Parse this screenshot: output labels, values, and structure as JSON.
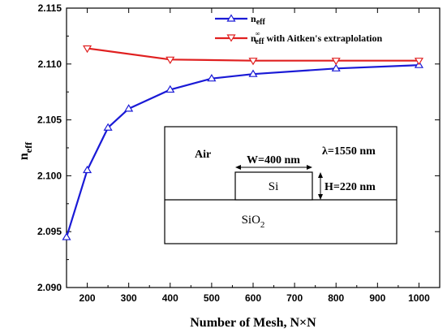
{
  "chart_data": {
    "type": "line",
    "xlabel": "Number of Mesh,  N×N",
    "ylabel_main": "n",
    "ylabel_sub": "eff",
    "xlim": [
      150,
      1050
    ],
    "ylim": [
      2.09,
      2.115
    ],
    "xticks": [
      200,
      300,
      400,
      500,
      600,
      700,
      800,
      900,
      1000
    ],
    "yticks": [
      2.09,
      2.095,
      2.1,
      2.105,
      2.11,
      2.115
    ],
    "ytick_labels": [
      "2.090",
      "2.095",
      "2.100",
      "2.105",
      "2.110",
      "2.115"
    ],
    "series": [
      {
        "name_main": "n",
        "name_sub": "eff",
        "name_rest": "",
        "color": "#1a1ad6",
        "marker": "triangle-up",
        "x": [
          150,
          200,
          250,
          300,
          400,
          500,
          600,
          800,
          1000
        ],
        "y": [
          2.0945,
          2.1005,
          2.1043,
          2.106,
          2.1077,
          2.1087,
          2.1091,
          2.1096,
          2.1099
        ]
      },
      {
        "name_main": "n",
        "name_sub": "eff",
        "name_sup": "∞",
        "name_rest": " with Aitken's extraplolation",
        "color": "#e02020",
        "marker": "triangle-down",
        "x": [
          200,
          400,
          600,
          800,
          1000
        ],
        "y": [
          2.1114,
          2.1104,
          2.1103,
          2.1103,
          2.1103
        ]
      }
    ],
    "inset": {
      "air_label": "Air",
      "width_label": "W=400 nm",
      "wavelength_label": "λ=1550 nm",
      "core_label": "Si",
      "height_label": "H=220 nm",
      "substrate_main": "SiO",
      "substrate_sub": "2"
    }
  }
}
